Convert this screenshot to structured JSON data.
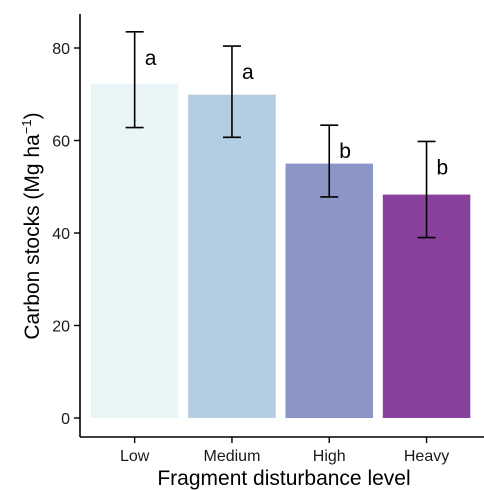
{
  "chart_data": {
    "type": "bar",
    "title": "",
    "xlabel": "Fragment disturbance level",
    "ylabel": "Carbon stocks (Mg ha",
    "ylabel_superscript": "−1",
    "ylabel_close": ")",
    "categories": [
      "Low",
      "Medium",
      "High",
      "Heavy"
    ],
    "values": [
      72.3,
      69.9,
      55.0,
      48.3
    ],
    "error_low": [
      62.8,
      60.7,
      47.8,
      39.0
    ],
    "error_high": [
      83.5,
      80.4,
      63.3,
      59.8
    ],
    "significance_labels": [
      "a",
      "a",
      "b",
      "b"
    ],
    "colors": [
      "#eaf5f8",
      "#b3cde3",
      "#8c96c6",
      "#88419d"
    ],
    "ylim": [
      0,
      86
    ],
    "yticks": [
      0,
      20,
      40,
      60,
      80
    ],
    "grid": false,
    "legend": "none"
  }
}
